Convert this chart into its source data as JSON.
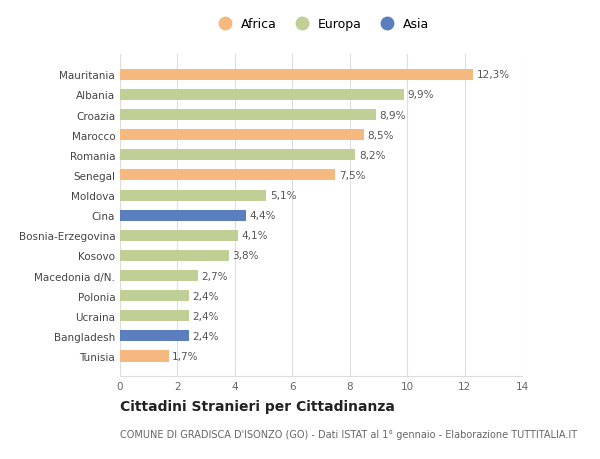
{
  "categories": [
    "Tunisia",
    "Bangladesh",
    "Ucraina",
    "Polonia",
    "Macedonia d/N.",
    "Kosovo",
    "Bosnia-Erzegovina",
    "Cina",
    "Moldova",
    "Senegal",
    "Romania",
    "Marocco",
    "Croazia",
    "Albania",
    "Mauritania"
  ],
  "values": [
    1.7,
    2.4,
    2.4,
    2.4,
    2.7,
    3.8,
    4.1,
    4.4,
    5.1,
    7.5,
    8.2,
    8.5,
    8.9,
    9.9,
    12.3
  ],
  "continents": [
    "Africa",
    "Asia",
    "Europa",
    "Europa",
    "Europa",
    "Europa",
    "Europa",
    "Asia",
    "Europa",
    "Africa",
    "Europa",
    "Africa",
    "Europa",
    "Europa",
    "Africa"
  ],
  "labels": [
    "1,7%",
    "2,4%",
    "2,4%",
    "2,4%",
    "2,7%",
    "3,8%",
    "4,1%",
    "4,4%",
    "5,1%",
    "7,5%",
    "8,2%",
    "8,5%",
    "8,9%",
    "9,9%",
    "12,3%"
  ],
  "colors": {
    "Africa": "#F5B97F",
    "Europa": "#BFCF96",
    "Asia": "#5B7FBE"
  },
  "legend_order": [
    "Africa",
    "Europa",
    "Asia"
  ],
  "title": "Cittadini Stranieri per Cittadinanza",
  "subtitle": "COMUNE DI GRADISCA D'ISONZO (GO) - Dati ISTAT al 1° gennaio - Elaborazione TUTTITALIA.IT",
  "xlim": [
    0,
    14
  ],
  "xticks": [
    0,
    2,
    4,
    6,
    8,
    10,
    12,
    14
  ],
  "background_color": "#FFFFFF",
  "grid_color": "#DDDDDD",
  "bar_height": 0.55,
  "label_fontsize": 7.5,
  "tick_fontsize": 7.5,
  "ylabel_fontsize": 7.5,
  "title_fontsize": 10,
  "subtitle_fontsize": 7,
  "legend_fontsize": 9
}
